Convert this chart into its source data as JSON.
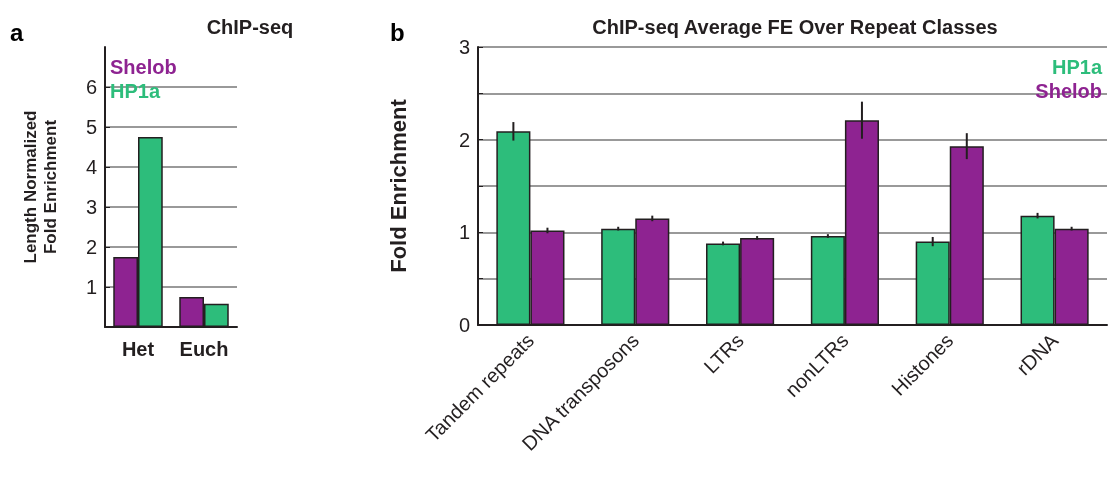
{
  "chart_data": [
    {
      "type": "bar",
      "title": "ChIP-seq",
      "ylabel": "Length Normalized\nFold Enrichment",
      "annotations": [
        "a"
      ],
      "categories": [
        "Het",
        "Euch"
      ],
      "series": [
        {
          "name": "Shelob",
          "color": "#8e2391",
          "values": [
            1.75,
            0.75
          ]
        },
        {
          "name": "HP1a",
          "color": "#2dbd7b",
          "values": [
            4.75,
            0.58
          ]
        }
      ],
      "ylim": [
        0,
        7
      ],
      "yticks": [
        1,
        2,
        3,
        4,
        5,
        6
      ],
      "grid": "y",
      "legend": "top left"
    },
    {
      "type": "bar",
      "title": "ChIP-seq Average FE Over Repeat Classes",
      "ylabel": "Fold Enrichment",
      "annotations": [
        "b"
      ],
      "categories": [
        "Tandem repeats",
        "DNA transposons",
        "LTRs",
        "nonLTRs",
        "Histones",
        "rDNA"
      ],
      "series": [
        {
          "name": "HP1a",
          "color": "#2dbd7b",
          "values": [
            2.09,
            1.04,
            0.88,
            0.96,
            0.9,
            1.18
          ],
          "errors": [
            0.1,
            0.02,
            0.02,
            0.02,
            0.05,
            0.03
          ]
        },
        {
          "name": "Shelob",
          "color": "#8e2391",
          "values": [
            1.02,
            1.15,
            0.94,
            2.21,
            1.93,
            1.04
          ],
          "errors": [
            0.03,
            0.03,
            0.02,
            0.2,
            0.14,
            0.02
          ]
        }
      ],
      "ylim": [
        0,
        3
      ],
      "yticks": [
        0,
        {
          "value": 0.5,
          "label": null
        },
        1,
        {
          "value": 1.5,
          "label": null
        },
        2,
        {
          "value": 2.5,
          "label": null
        },
        3
      ],
      "grid": "y",
      "legend": "top right"
    }
  ]
}
